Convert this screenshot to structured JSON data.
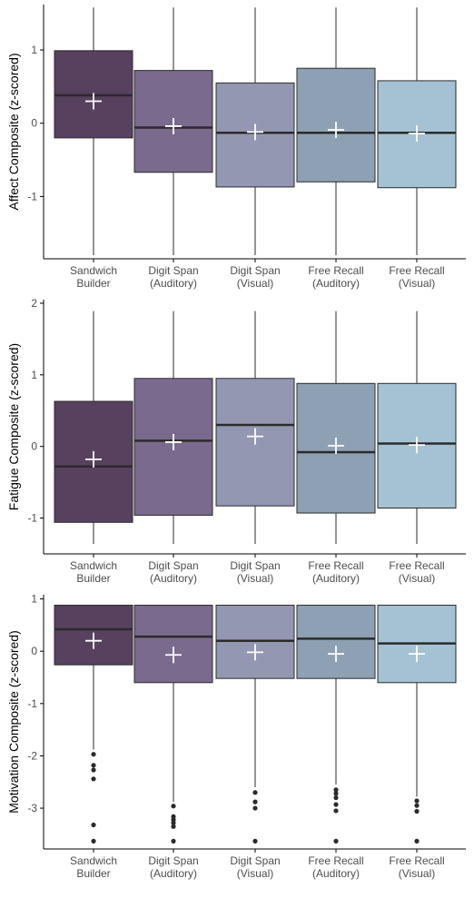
{
  "chart_data": [
    {
      "type": "boxplot",
      "ylabel": "Affect Composite (z-scored)",
      "ylim": [
        -1.85,
        1.62
      ],
      "yticks": [
        1,
        0,
        -1
      ],
      "ytick_labels": [
        "1",
        "0",
        "-1"
      ],
      "categories": [
        [
          "Sandwich",
          "Builder"
        ],
        [
          "Digit Span",
          "(Auditory)"
        ],
        [
          "Digit Span",
          "(Visual)"
        ],
        [
          "Free Recall",
          "(Auditory)"
        ],
        [
          "Free Recall",
          "(Visual)"
        ]
      ],
      "boxes": [
        {
          "whisker_low": -1.8,
          "q1": -0.2,
          "median": 0.38,
          "q3": 0.99,
          "whisker_high": 1.58,
          "mean": 0.3,
          "outliers": []
        },
        {
          "whisker_low": -1.8,
          "q1": -0.67,
          "median": -0.06,
          "q3": 0.72,
          "whisker_high": 1.58,
          "mean": -0.04,
          "outliers": []
        },
        {
          "whisker_low": -1.8,
          "q1": -0.87,
          "median": -0.13,
          "q3": 0.55,
          "whisker_high": 1.58,
          "mean": -0.12,
          "outliers": []
        },
        {
          "whisker_low": -1.8,
          "q1": -0.8,
          "median": -0.13,
          "q3": 0.75,
          "whisker_high": 1.58,
          "mean": -0.09,
          "outliers": []
        },
        {
          "whisker_low": -1.8,
          "q1": -0.88,
          "median": -0.13,
          "q3": 0.58,
          "whisker_high": 1.58,
          "mean": -0.14,
          "outliers": []
        }
      ]
    },
    {
      "type": "boxplot",
      "ylabel": "Fatigue Composite (z-scored)",
      "ylim": [
        -1.5,
        2.05
      ],
      "yticks": [
        2,
        1,
        0,
        -1
      ],
      "ytick_labels": [
        "2",
        "1",
        "0",
        "-1"
      ],
      "categories": [
        [
          "Sandwich",
          "Builder"
        ],
        [
          "Digit Span",
          "(Auditory)"
        ],
        [
          "Digit Span",
          "(Visual)"
        ],
        [
          "Free Recall",
          "(Auditory)"
        ],
        [
          "Free Recall",
          "(Visual)"
        ]
      ],
      "boxes": [
        {
          "whisker_low": -1.36,
          "q1": -1.06,
          "median": -0.28,
          "q3": 0.63,
          "whisker_high": 1.89,
          "mean": -0.18,
          "outliers": []
        },
        {
          "whisker_low": -1.36,
          "q1": -0.96,
          "median": 0.08,
          "q3": 0.95,
          "whisker_high": 1.89,
          "mean": 0.06,
          "outliers": []
        },
        {
          "whisker_low": -1.36,
          "q1": -0.83,
          "median": 0.3,
          "q3": 0.95,
          "whisker_high": 1.89,
          "mean": 0.14,
          "outliers": []
        },
        {
          "whisker_low": -1.36,
          "q1": -0.93,
          "median": -0.08,
          "q3": 0.88,
          "whisker_high": 1.89,
          "mean": 0.01,
          "outliers": []
        },
        {
          "whisker_low": -1.36,
          "q1": -0.86,
          "median": 0.04,
          "q3": 0.88,
          "whisker_high": 1.89,
          "mean": 0.02,
          "outliers": []
        }
      ]
    },
    {
      "type": "boxplot",
      "ylabel": "Motivation Composite (z-scored)",
      "ylim": [
        -3.78,
        1.08
      ],
      "yticks": [
        1,
        0,
        -1,
        -2,
        -3
      ],
      "ytick_labels": [
        "1",
        "0",
        "-1",
        "-2",
        "-3"
      ],
      "categories": [
        [
          "Sandwich",
          "Builder"
        ],
        [
          "Digit Span",
          "(Auditory)"
        ],
        [
          "Digit Span",
          "(Visual)"
        ],
        [
          "Free Recall",
          "(Auditory)"
        ],
        [
          "Free Recall",
          "(Visual)"
        ]
      ],
      "boxes": [
        {
          "whisker_low": -1.88,
          "q1": -0.26,
          "median": 0.42,
          "q3": 0.88,
          "whisker_high": 0.88,
          "mean": 0.2,
          "outliers": [
            -1.97,
            -2.18,
            -2.27,
            -2.44,
            -3.32,
            -3.63
          ]
        },
        {
          "whisker_low": -2.88,
          "q1": -0.6,
          "median": 0.28,
          "q3": 0.88,
          "whisker_high": 0.88,
          "mean": -0.07,
          "outliers": [
            -2.96,
            -3.16,
            -3.22,
            -3.28,
            -3.35,
            -3.63
          ]
        },
        {
          "whisker_low": -2.6,
          "q1": -0.52,
          "median": 0.2,
          "q3": 0.88,
          "whisker_high": 0.88,
          "mean": -0.02,
          "outliers": [
            -2.7,
            -2.88,
            -3.0,
            -3.63
          ]
        },
        {
          "whisker_low": -2.55,
          "q1": -0.52,
          "median": 0.24,
          "q3": 0.88,
          "whisker_high": 0.88,
          "mean": -0.05,
          "outliers": [
            -2.65,
            -2.72,
            -2.8,
            -2.93,
            -3.05,
            -3.63
          ]
        },
        {
          "whisker_low": -2.78,
          "q1": -0.6,
          "median": 0.15,
          "q3": 0.88,
          "whisker_high": 0.88,
          "mean": -0.05,
          "outliers": [
            -2.86,
            -2.95,
            -3.06,
            -3.63
          ]
        }
      ]
    }
  ],
  "colors": {
    "fills": [
      "#58405f",
      "#7a6a8d",
      "#9497b1",
      "#8ea0b4",
      "#a4c2d3"
    ],
    "line": "#2b2b2b",
    "mean_marker": "#ffffff",
    "axis": "#000000",
    "tick_text": "#4d4d4d"
  },
  "markers": {
    "mean": "white-plus-marker",
    "outlier": "black-dot-marker"
  }
}
